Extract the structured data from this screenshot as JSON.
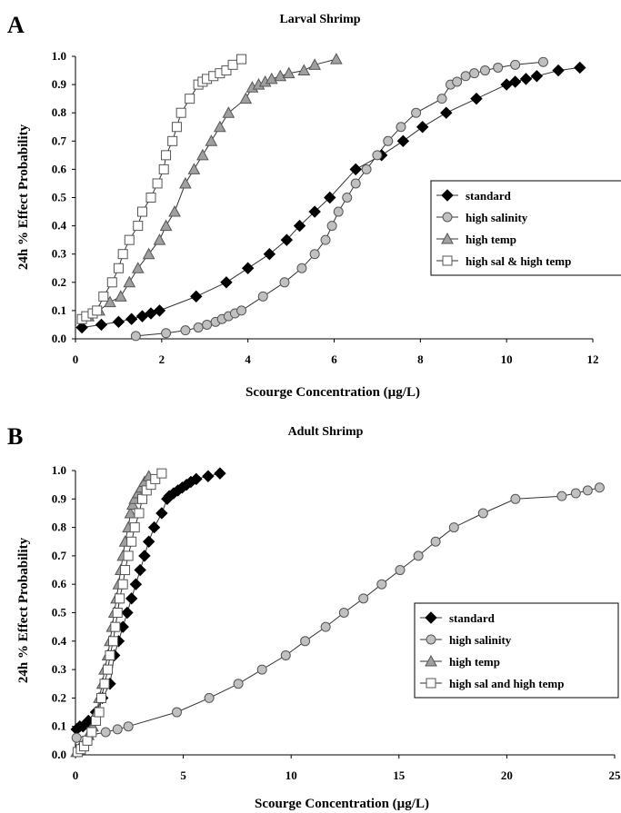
{
  "chart_data": [
    {
      "panel": "A",
      "type": "line",
      "title": "Larval Shrimp",
      "xlabel": "Scourge Concentration (µg/L)",
      "ylabel": "24h % Effect Probability",
      "xlim": [
        0,
        12
      ],
      "ylim": [
        0.0,
        1.0
      ],
      "xticks": [
        0,
        2,
        4,
        6,
        8,
        10,
        12
      ],
      "yticks": [
        0.0,
        0.1,
        0.2,
        0.3,
        0.4,
        0.5,
        0.6,
        0.7,
        0.8,
        0.9,
        1.0
      ],
      "legend_position": "right",
      "series": [
        {
          "name": "standard",
          "marker": "diamond",
          "fill": "#000000",
          "x": [
            0.15,
            0.6,
            1.0,
            1.3,
            1.55,
            1.75,
            1.95,
            2.8,
            3.5,
            4.0,
            4.5,
            4.9,
            5.2,
            5.55,
            5.9,
            6.5,
            7.1,
            7.6,
            8.05,
            8.6,
            9.3,
            10.0,
            10.2,
            10.45,
            10.7,
            11.2,
            11.7
          ],
          "y": [
            0.04,
            0.05,
            0.06,
            0.07,
            0.08,
            0.09,
            0.1,
            0.15,
            0.2,
            0.25,
            0.3,
            0.35,
            0.4,
            0.45,
            0.5,
            0.6,
            0.65,
            0.7,
            0.75,
            0.8,
            0.85,
            0.9,
            0.91,
            0.92,
            0.93,
            0.95,
            0.96
          ]
        },
        {
          "name": "high salinity",
          "marker": "circle",
          "fill": "#c0c0c0",
          "x": [
            1.4,
            2.1,
            2.55,
            2.85,
            3.05,
            3.25,
            3.4,
            3.55,
            3.7,
            3.85,
            4.35,
            4.85,
            5.25,
            5.55,
            5.8,
            5.95,
            6.1,
            6.3,
            6.5,
            6.75,
            7.0,
            7.25,
            7.55,
            7.9,
            8.5,
            8.7,
            8.85,
            9.05,
            9.25,
            9.5,
            9.8,
            10.2,
            10.85
          ],
          "y": [
            0.01,
            0.02,
            0.03,
            0.04,
            0.05,
            0.06,
            0.07,
            0.08,
            0.09,
            0.1,
            0.15,
            0.2,
            0.25,
            0.3,
            0.35,
            0.4,
            0.45,
            0.5,
            0.55,
            0.6,
            0.65,
            0.7,
            0.75,
            0.8,
            0.85,
            0.9,
            0.91,
            0.93,
            0.94,
            0.95,
            0.96,
            0.97,
            0.98
          ]
        },
        {
          "name": "high temp",
          "marker": "triangle",
          "fill": "#a0a0a0",
          "x": [
            0.3,
            0.55,
            0.8,
            1.05,
            1.25,
            1.45,
            1.7,
            1.95,
            2.1,
            2.3,
            2.55,
            2.75,
            2.95,
            3.15,
            3.35,
            3.55,
            3.95,
            4.1,
            4.25,
            4.4,
            4.55,
            4.75,
            4.95,
            5.3,
            5.55,
            6.05
          ],
          "y": [
            0.08,
            0.1,
            0.13,
            0.15,
            0.2,
            0.25,
            0.3,
            0.35,
            0.4,
            0.45,
            0.55,
            0.6,
            0.65,
            0.7,
            0.75,
            0.8,
            0.85,
            0.89,
            0.9,
            0.91,
            0.92,
            0.93,
            0.94,
            0.95,
            0.97,
            0.99
          ]
        },
        {
          "name": "high sal & high temp",
          "marker": "square",
          "fill": "#ffffff",
          "x": [
            0.15,
            0.25,
            0.4,
            0.5,
            0.65,
            0.85,
            1.0,
            1.1,
            1.25,
            1.45,
            1.55,
            1.75,
            1.9,
            2.05,
            2.1,
            2.25,
            2.35,
            2.45,
            2.65,
            2.85,
            2.95,
            3.05,
            3.2,
            3.35,
            3.5,
            3.65,
            3.85
          ],
          "y": [
            0.07,
            0.08,
            0.09,
            0.1,
            0.15,
            0.2,
            0.25,
            0.3,
            0.35,
            0.4,
            0.45,
            0.5,
            0.55,
            0.6,
            0.65,
            0.7,
            0.75,
            0.8,
            0.85,
            0.9,
            0.91,
            0.92,
            0.93,
            0.94,
            0.95,
            0.97,
            0.99
          ]
        }
      ]
    },
    {
      "panel": "B",
      "type": "line",
      "title": "Adult Shrimp",
      "xlabel": "Scourge Concentration (µg/L)",
      "ylabel": "24h % Effect Probability",
      "xlim": [
        0,
        25
      ],
      "ylim": [
        0.0,
        1.0
      ],
      "xticks": [
        0,
        5,
        10,
        15,
        20,
        25
      ],
      "yticks": [
        0.0,
        0.1,
        0.2,
        0.3,
        0.4,
        0.5,
        0.6,
        0.7,
        0.8,
        0.9,
        1.0
      ],
      "legend_position": "right",
      "series": [
        {
          "name": "standard",
          "marker": "diamond",
          "fill": "#000000",
          "x": [
            0.05,
            0.2,
            0.35,
            0.6,
            0.95,
            1.25,
            1.6,
            1.8,
            2.0,
            2.2,
            2.4,
            2.6,
            2.8,
            3.0,
            3.2,
            3.4,
            3.65,
            4.0,
            4.25,
            4.35,
            4.55,
            4.75,
            4.95,
            5.15,
            5.35,
            5.6,
            6.15,
            6.7
          ],
          "y": [
            0.09,
            0.1,
            0.1,
            0.12,
            0.15,
            0.2,
            0.25,
            0.35,
            0.4,
            0.45,
            0.5,
            0.55,
            0.6,
            0.65,
            0.7,
            0.75,
            0.8,
            0.85,
            0.9,
            0.91,
            0.92,
            0.93,
            0.94,
            0.95,
            0.96,
            0.97,
            0.98,
            0.99
          ]
        },
        {
          "name": "high salinity",
          "marker": "circle",
          "fill": "#c0c0c0",
          "x": [
            0.05,
            1.4,
            1.95,
            2.45,
            4.7,
            6.2,
            7.55,
            8.65,
            9.75,
            10.65,
            11.6,
            12.45,
            13.35,
            14.2,
            15.05,
            15.9,
            16.7,
            17.55,
            18.9,
            20.4,
            22.55,
            23.2,
            23.75,
            24.3
          ],
          "y": [
            0.06,
            0.08,
            0.09,
            0.1,
            0.15,
            0.2,
            0.25,
            0.3,
            0.35,
            0.4,
            0.45,
            0.5,
            0.55,
            0.6,
            0.65,
            0.7,
            0.75,
            0.8,
            0.85,
            0.9,
            0.91,
            0.92,
            0.93,
            0.94
          ]
        },
        {
          "name": "high temp",
          "marker": "triangle",
          "fill": "#a0a0a0",
          "x": [
            0.05,
            0.15,
            0.3,
            0.45,
            0.6,
            0.8,
            1.0,
            1.1,
            1.25,
            1.35,
            1.5,
            1.6,
            1.7,
            1.8,
            1.9,
            2.0,
            2.1,
            2.2,
            2.3,
            2.45,
            2.55,
            2.65,
            2.75,
            2.9,
            3.05,
            3.2,
            3.4
          ],
          "y": [
            0.01,
            0.02,
            0.03,
            0.05,
            0.07,
            0.1,
            0.15,
            0.2,
            0.25,
            0.3,
            0.35,
            0.4,
            0.45,
            0.5,
            0.55,
            0.6,
            0.65,
            0.7,
            0.75,
            0.8,
            0.85,
            0.88,
            0.9,
            0.92,
            0.94,
            0.96,
            0.98
          ]
        },
        {
          "name": "high sal and high temp",
          "marker": "square",
          "fill": "#ffffff",
          "x": [
            0.1,
            0.25,
            0.4,
            0.55,
            0.75,
            0.95,
            1.1,
            1.2,
            1.35,
            1.5,
            1.6,
            1.75,
            1.85,
            1.95,
            2.05,
            2.2,
            2.3,
            2.45,
            2.6,
            2.75,
            2.95,
            3.1,
            3.3,
            3.5,
            3.7,
            4.0
          ],
          "y": [
            0.01,
            0.02,
            0.03,
            0.05,
            0.08,
            0.12,
            0.15,
            0.2,
            0.25,
            0.3,
            0.35,
            0.4,
            0.45,
            0.5,
            0.55,
            0.6,
            0.65,
            0.7,
            0.75,
            0.8,
            0.85,
            0.9,
            0.93,
            0.95,
            0.97,
            0.99
          ]
        }
      ]
    }
  ]
}
